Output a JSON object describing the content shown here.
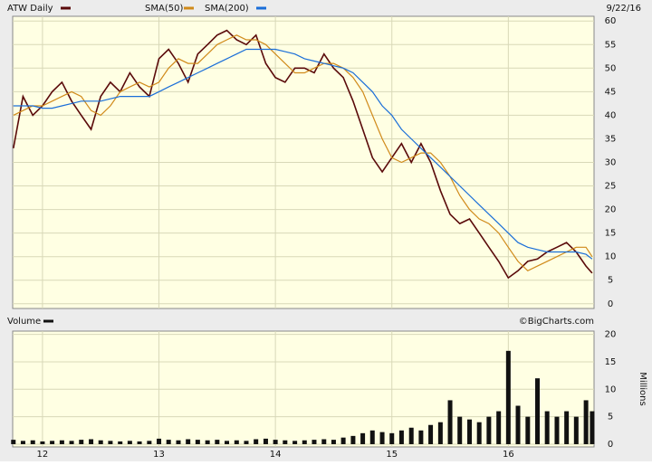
{
  "chart_data": [
    {
      "type": "line",
      "date_label": "9/22/16",
      "x": [
        11.75,
        11.833,
        11.917,
        12,
        12.083,
        12.167,
        12.25,
        12.333,
        12.417,
        12.5,
        12.583,
        12.667,
        12.75,
        12.833,
        12.917,
        13,
        13.083,
        13.167,
        13.25,
        13.333,
        13.417,
        13.5,
        13.583,
        13.667,
        13.75,
        13.833,
        13.917,
        14,
        14.083,
        14.167,
        14.25,
        14.333,
        14.417,
        14.5,
        14.583,
        14.667,
        14.75,
        14.833,
        14.917,
        15,
        15.083,
        15.167,
        15.25,
        15.333,
        15.417,
        15.5,
        15.583,
        15.667,
        15.75,
        15.833,
        15.917,
        16,
        16.083,
        16.167,
        16.25,
        16.333,
        16.417,
        16.5,
        16.583,
        16.667,
        16.72
      ],
      "series": [
        {
          "name": "ATW Daily",
          "color": "#5a0a0a",
          "values": [
            33,
            44,
            40,
            42,
            45,
            47,
            43,
            40,
            37,
            44,
            47,
            45,
            49,
            46,
            44,
            52,
            54,
            51,
            47,
            53,
            55,
            57,
            58,
            56,
            55,
            57,
            51,
            48,
            47,
            50,
            50,
            49,
            53,
            50,
            48,
            43,
            37,
            31,
            28,
            31,
            34,
            30,
            34,
            30,
            24,
            19,
            17,
            18,
            15,
            12,
            9,
            5.5,
            7,
            9,
            9.5,
            11,
            12,
            13,
            11,
            8,
            6.5
          ]
        },
        {
          "name": "SMA(50)",
          "color": "#d08a1a",
          "values": [
            40,
            41,
            42,
            42,
            43,
            44,
            45,
            44,
            41,
            40,
            42,
            45,
            46,
            47,
            46,
            47,
            50,
            52,
            51,
            51,
            53,
            55,
            56,
            57,
            56,
            56,
            55,
            53,
            51,
            49,
            49,
            50,
            51,
            51,
            50,
            48,
            45,
            40,
            35,
            31,
            30,
            31,
            32,
            32,
            30,
            27,
            23,
            20,
            18,
            17,
            15,
            12,
            9,
            7,
            8,
            9,
            10,
            11,
            12,
            12,
            10
          ]
        },
        {
          "name": "SMA(200)",
          "color": "#1a6ed8",
          "values": [
            42,
            42,
            42,
            41.5,
            41.5,
            42,
            42.5,
            43,
            43,
            43,
            43.5,
            44,
            44,
            44,
            44,
            45,
            46,
            47,
            48,
            49,
            50,
            51,
            52,
            53,
            54,
            54,
            54,
            54,
            53.5,
            53,
            52,
            51.5,
            51,
            50.5,
            50,
            49,
            47,
            45,
            42,
            40,
            37,
            35,
            33,
            31,
            29,
            27,
            25,
            23,
            21,
            19,
            17,
            15,
            13,
            12,
            11.5,
            11,
            11,
            11,
            11,
            10.5,
            9.5
          ]
        }
      ],
      "xlim": [
        11.744,
        16.736
      ],
      "xticks": [
        12,
        13,
        14,
        15,
        16
      ],
      "ylim": [
        -1,
        61
      ],
      "yticks": [
        0,
        5,
        10,
        15,
        20,
        25,
        30,
        35,
        40,
        45,
        50,
        55,
        60
      ],
      "grid": true
    },
    {
      "type": "bar",
      "credit": "©BigCharts.com",
      "y_label": "Millions",
      "x": [
        11.75,
        11.833,
        11.917,
        12,
        12.083,
        12.167,
        12.25,
        12.333,
        12.417,
        12.5,
        12.583,
        12.667,
        12.75,
        12.833,
        12.917,
        13,
        13.083,
        13.167,
        13.25,
        13.333,
        13.417,
        13.5,
        13.583,
        13.667,
        13.75,
        13.833,
        13.917,
        14,
        14.083,
        14.167,
        14.25,
        14.333,
        14.417,
        14.5,
        14.583,
        14.667,
        14.75,
        14.833,
        14.917,
        15,
        15.083,
        15.167,
        15.25,
        15.333,
        15.417,
        15.5,
        15.583,
        15.667,
        15.75,
        15.833,
        15.917,
        16,
        16.083,
        16.167,
        16.25,
        16.333,
        16.417,
        16.5,
        16.583,
        16.667,
        16.72
      ],
      "series": [
        {
          "name": "Volume",
          "color": "#111111",
          "values": [
            0.8,
            0.6,
            0.7,
            0.5,
            0.6,
            0.7,
            0.6,
            0.8,
            0.9,
            0.7,
            0.6,
            0.5,
            0.6,
            0.5,
            0.6,
            1.0,
            0.8,
            0.7,
            0.9,
            0.8,
            0.7,
            0.8,
            0.6,
            0.7,
            0.6,
            0.9,
            1.0,
            0.8,
            0.7,
            0.6,
            0.7,
            0.8,
            0.9,
            0.8,
            1.2,
            1.5,
            2.0,
            2.5,
            2.2,
            2.0,
            2.5,
            3.0,
            2.5,
            3.5,
            4.0,
            8.0,
            5.0,
            4.5,
            4.0,
            5.0,
            6.0,
            17.0,
            7.0,
            5.0,
            12.0,
            6.0,
            5.0,
            6.0,
            5.0,
            8.0,
            6.0
          ]
        }
      ],
      "xlim": [
        11.744,
        16.736
      ],
      "xticks": [
        12,
        13,
        14,
        15,
        16
      ],
      "ylim": [
        -0.5,
        20.6
      ],
      "yticks": [
        0,
        5,
        10,
        15,
        20
      ],
      "grid": true
    }
  ]
}
